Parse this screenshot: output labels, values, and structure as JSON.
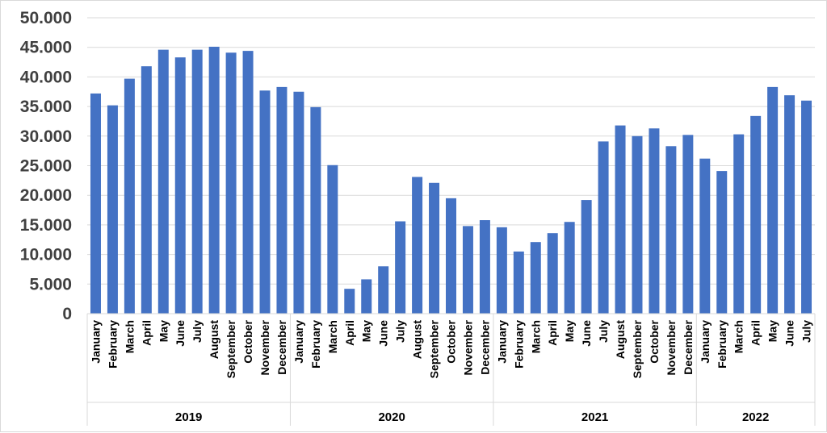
{
  "chart_data": {
    "type": "bar",
    "title": "",
    "xlabel": "",
    "ylabel": "",
    "ylim": [
      0,
      50000
    ],
    "grid": true,
    "legend": "none",
    "bar_color": "#4472C4",
    "grid_color": "#d9d9d9",
    "ytick_labels": [
      "0",
      "5.000",
      "10.000",
      "15.000",
      "20.000",
      "25.000",
      "30.000",
      "35.000",
      "40.000",
      "45.000",
      "50.000"
    ],
    "ytick_values": [
      0,
      5000,
      10000,
      15000,
      20000,
      25000,
      30000,
      35000,
      40000,
      45000,
      50000
    ],
    "years": [
      {
        "label": "2019",
        "months": [
          "January",
          "February",
          "March",
          "April",
          "May",
          "June",
          "July",
          "August",
          "September",
          "October",
          "November",
          "December"
        ]
      },
      {
        "label": "2020",
        "months": [
          "January",
          "February",
          "March",
          "April",
          "May",
          "June",
          "July",
          "August",
          "September",
          "October",
          "November",
          "December"
        ]
      },
      {
        "label": "2021",
        "months": [
          "January",
          "February",
          "March",
          "April",
          "May",
          "June",
          "July",
          "August",
          "September",
          "October",
          "November",
          "December"
        ]
      },
      {
        "label": "2022",
        "months": [
          "January",
          "February",
          "March",
          "April",
          "May",
          "June",
          "July"
        ]
      }
    ],
    "values": [
      37200,
      35200,
      39700,
      41800,
      44600,
      43300,
      44600,
      45100,
      44100,
      44400,
      37700,
      38300,
      37500,
      34900,
      25100,
      4200,
      5800,
      8000,
      15600,
      23100,
      22100,
      19500,
      14800,
      15800,
      14600,
      10500,
      12100,
      13600,
      15500,
      19200,
      29100,
      31800,
      30000,
      31300,
      28300,
      30200,
      26200,
      24100,
      30300,
      33400,
      38300,
      36900,
      36000
    ]
  }
}
